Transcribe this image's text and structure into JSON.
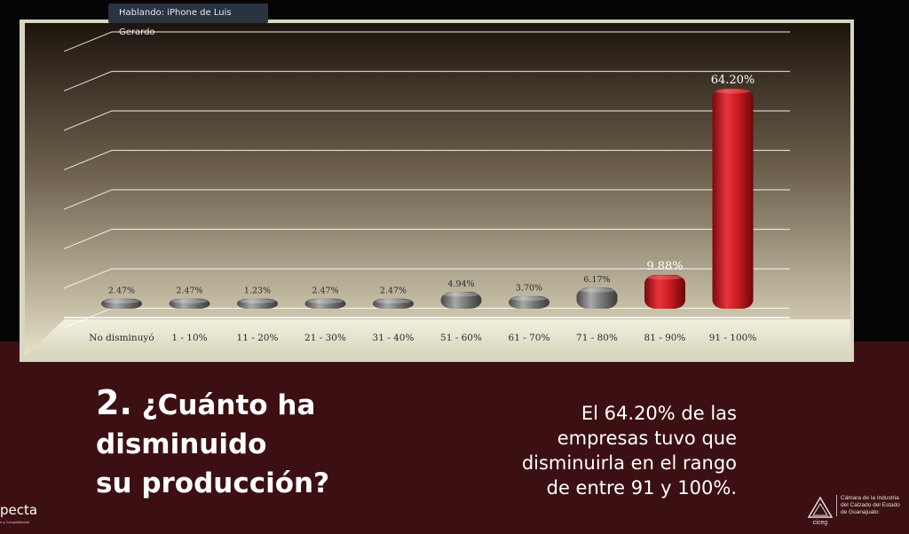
{
  "meeting": {
    "speaking_label": "Hablando: iPhone de Luis Gerardo"
  },
  "chart_data": {
    "type": "bar",
    "title": "",
    "xlabel": "",
    "ylabel": "",
    "grid": true,
    "ylim": [
      0,
      70
    ],
    "categories": [
      "No disminuyó",
      "1 - 10%",
      "11 - 20%",
      "21 - 30%",
      "31 - 40%",
      "51 - 60%",
      "61 - 70%",
      "71 - 80%",
      "81 - 90%",
      "91 - 100%"
    ],
    "values": [
      2.47,
      2.47,
      1.23,
      2.47,
      2.47,
      4.94,
      3.7,
      6.17,
      9.88,
      64.2
    ],
    "data_labels": [
      "2.47%",
      "2.47%",
      "1.23%",
      "2.47%",
      "2.47%",
      "4.94%",
      "3.70%",
      "6.17%",
      "9.88%",
      "64.20%"
    ],
    "colors": {
      "default": "#808080",
      "highlight": "#c8191e"
    },
    "highlight_indices": [
      8,
      9
    ]
  },
  "slide": {
    "question_number": "2.",
    "question_line1": "¿Cuánto ha",
    "question_line2": "disminuido",
    "question_line3": "su producción?",
    "answer_lines": [
      "El 64.20% de las",
      "empresas tuvo que",
      "disminuirla en el rango",
      "de entre 91 y 100%."
    ]
  },
  "logos": {
    "left_name": "pecta",
    "left_sub": "n y Competitividad",
    "right_brand": "ciceg",
    "right_line1": "Cámara de la Industria",
    "right_line2": "del Calzado del Estado",
    "right_line3": "de Guanajuato"
  }
}
